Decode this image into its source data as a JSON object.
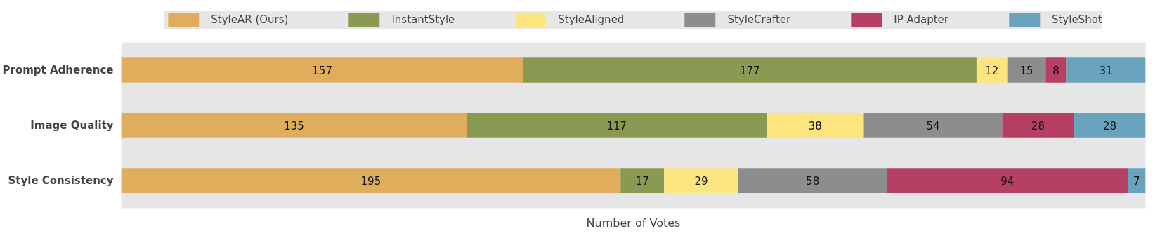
{
  "chart_data": {
    "type": "bar",
    "orientation": "horizontal",
    "stacked": true,
    "xlabel": "Number of Votes",
    "categories": [
      "Prompt Adherence",
      "Image Quality",
      "Style Consistency"
    ],
    "xlim": [
      0,
      400
    ],
    "tick_labels": "y",
    "data_labels": true,
    "legend": "top",
    "series": [
      {
        "name": "StyleAR (Ours)",
        "color": "#e0ad5c",
        "values": [
          157,
          135,
          195
        ]
      },
      {
        "name": "InstantStyle",
        "color": "#8a9a52",
        "values": [
          177,
          117,
          17
        ]
      },
      {
        "name": "StyleAligned",
        "color": "#fde680",
        "values": [
          12,
          38,
          29
        ]
      },
      {
        "name": "StyleCrafter",
        "color": "#8e8d8e",
        "values": [
          15,
          54,
          58
        ]
      },
      {
        "name": "IP-Adapter",
        "color": "#b54063",
        "values": [
          8,
          28,
          94
        ]
      },
      {
        "name": "StyleShot",
        "color": "#6aa3bd",
        "values": [
          31,
          28,
          7
        ]
      }
    ]
  }
}
